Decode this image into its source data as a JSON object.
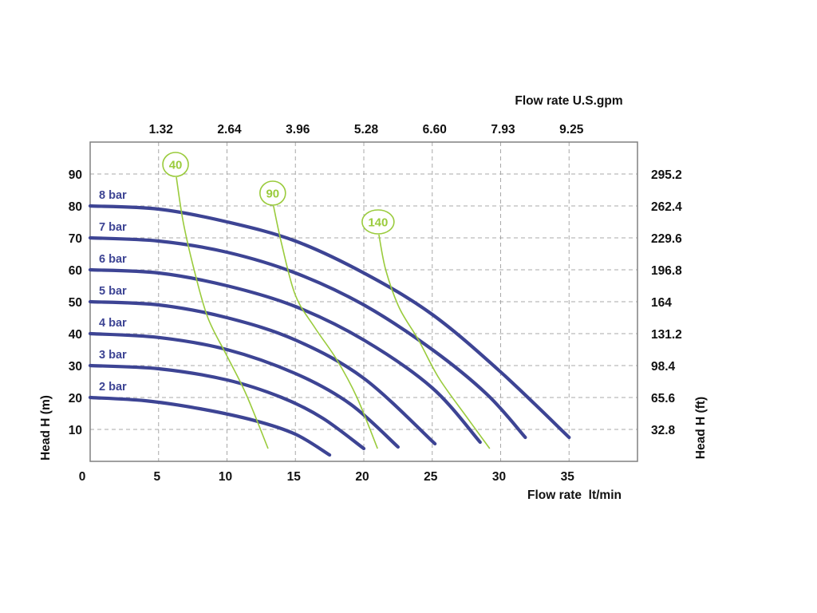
{
  "chart_data": {
    "type": "line",
    "x_bottom_label": "Flow rate  lt/min",
    "x_top_label": "Flow rate U.S.gpm",
    "y_left_label": "Head H (m)",
    "y_right_label": "Head H (ft)",
    "xlim": [
      0,
      40
    ],
    "ylim": [
      0,
      100
    ],
    "grid": true,
    "x_bottom_ticks": [
      {
        "value": 0,
        "label": "0"
      },
      {
        "value": 5,
        "label": "5"
      },
      {
        "value": 10,
        "label": "10"
      },
      {
        "value": 15,
        "label": "15"
      },
      {
        "value": 20,
        "label": "20"
      },
      {
        "value": 25,
        "label": "25"
      },
      {
        "value": 30,
        "label": "30"
      },
      {
        "value": 35,
        "label": "35"
      }
    ],
    "x_top_ticks": [
      {
        "value": 5,
        "label": "1.32"
      },
      {
        "value": 10,
        "label": "2.64"
      },
      {
        "value": 15,
        "label": "3.96"
      },
      {
        "value": 20,
        "label": "5.28"
      },
      {
        "value": 25,
        "label": "6.60"
      },
      {
        "value": 30,
        "label": "7.93"
      },
      {
        "value": 35,
        "label": "9.25"
      }
    ],
    "y_left_ticks": [
      {
        "value": 10,
        "label": "10"
      },
      {
        "value": 20,
        "label": "20"
      },
      {
        "value": 30,
        "label": "30"
      },
      {
        "value": 40,
        "label": "40"
      },
      {
        "value": 50,
        "label": "50"
      },
      {
        "value": 60,
        "label": "60"
      },
      {
        "value": 70,
        "label": "70"
      },
      {
        "value": 80,
        "label": "80"
      },
      {
        "value": 90,
        "label": "90"
      }
    ],
    "y_right_ticks": [
      {
        "value": 10,
        "label": "32.8"
      },
      {
        "value": 20,
        "label": "65.6"
      },
      {
        "value": 30,
        "label": "98.4"
      },
      {
        "value": 40,
        "label": "131.2"
      },
      {
        "value": 50,
        "label": "164"
      },
      {
        "value": 60,
        "label": "196.8"
      },
      {
        "value": 70,
        "label": "229.6"
      },
      {
        "value": 80,
        "label": "262.4"
      },
      {
        "value": 90,
        "label": "295.2"
      }
    ],
    "series": [
      {
        "name": "2 bar",
        "color": "#3d4494",
        "points": [
          [
            0,
            20
          ],
          [
            4,
            19
          ],
          [
            8,
            16.5
          ],
          [
            12,
            12.8
          ],
          [
            15,
            8.5
          ],
          [
            17.5,
            2
          ]
        ]
      },
      {
        "name": "3 bar",
        "color": "#3d4494",
        "points": [
          [
            0,
            30
          ],
          [
            5,
            29
          ],
          [
            10,
            25.5
          ],
          [
            14,
            20
          ],
          [
            17,
            13.5
          ],
          [
            20,
            4
          ]
        ]
      },
      {
        "name": "4 bar",
        "color": "#3d4494",
        "points": [
          [
            0,
            40
          ],
          [
            5,
            38.8
          ],
          [
            10,
            35
          ],
          [
            15,
            27.5
          ],
          [
            19,
            18
          ],
          [
            22.5,
            4.5
          ]
        ]
      },
      {
        "name": "5 bar",
        "color": "#3d4494",
        "points": [
          [
            0,
            50
          ],
          [
            5,
            49
          ],
          [
            10,
            45
          ],
          [
            15,
            38
          ],
          [
            20,
            26
          ],
          [
            25.2,
            5.5
          ]
        ]
      },
      {
        "name": "6 bar",
        "color": "#3d4494",
        "points": [
          [
            0,
            60
          ],
          [
            5,
            59
          ],
          [
            10,
            55
          ],
          [
            15,
            48.5
          ],
          [
            20,
            38
          ],
          [
            25,
            23
          ],
          [
            28.5,
            6
          ]
        ]
      },
      {
        "name": "7 bar",
        "color": "#3d4494",
        "points": [
          [
            0,
            70
          ],
          [
            5,
            69
          ],
          [
            10,
            65.5
          ],
          [
            15,
            59
          ],
          [
            20,
            49
          ],
          [
            25,
            35
          ],
          [
            29,
            21
          ],
          [
            31.8,
            7.5
          ]
        ]
      },
      {
        "name": "8 bar",
        "color": "#3d4494",
        "points": [
          [
            0,
            80
          ],
          [
            5,
            79
          ],
          [
            10,
            75
          ],
          [
            15,
            69
          ],
          [
            20,
            59
          ],
          [
            25,
            46
          ],
          [
            30,
            28
          ],
          [
            35,
            7.5
          ]
        ]
      }
    ],
    "iso_lines": [
      {
        "name": "40",
        "color": "#9acb3c",
        "points": [
          [
            6.3,
            89
          ],
          [
            6.8,
            75
          ],
          [
            7.6,
            60
          ],
          [
            8.6,
            45
          ],
          [
            10,
            33
          ],
          [
            11.4,
            21
          ],
          [
            13,
            4
          ]
        ]
      },
      {
        "name": "90",
        "color": "#9acb3c",
        "points": [
          [
            13.4,
            80
          ],
          [
            14,
            68
          ],
          [
            15,
            52
          ],
          [
            16.4,
            42
          ],
          [
            18,
            32
          ],
          [
            19.5,
            20
          ],
          [
            21,
            4
          ]
        ]
      },
      {
        "name": "140",
        "color": "#9acb3c",
        "points": [
          [
            21.1,
            71
          ],
          [
            21.6,
            60
          ],
          [
            22.6,
            48
          ],
          [
            24,
            38
          ],
          [
            25.5,
            26
          ],
          [
            27.5,
            14
          ],
          [
            29.2,
            4
          ]
        ]
      }
    ]
  }
}
